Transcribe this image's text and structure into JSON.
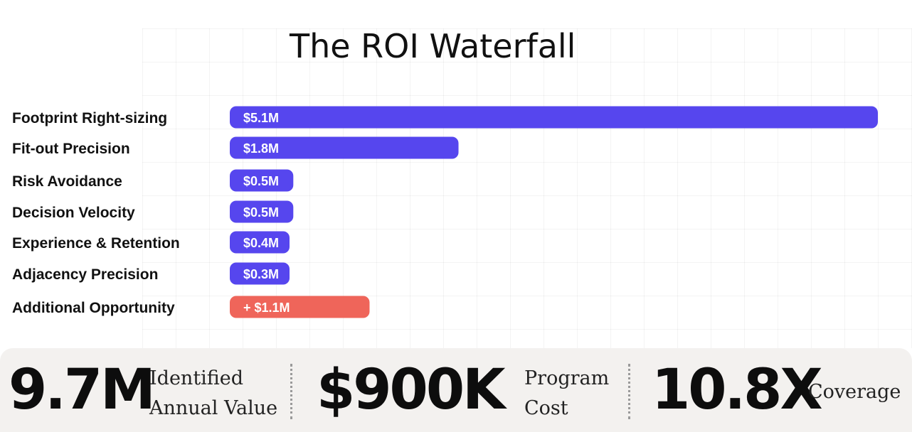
{
  "chart_data": {
    "type": "bar",
    "orientation": "horizontal",
    "title": "The ROI Waterfall",
    "categories": [
      "Footprint Right-sizing",
      "Fit-out Precision",
      "Risk Avoidance",
      "Decision Velocity",
      "Experience & Retention",
      "Adjacency Precision",
      "Additional Opportunity"
    ],
    "values": [
      5.1,
      1.8,
      0.5,
      0.5,
      0.4,
      0.3,
      1.1
    ],
    "data_labels": [
      "$5.1M",
      "$1.8M",
      "$0.5M",
      "$0.5M",
      "$0.4M",
      "$0.3M",
      "+ $1.1M"
    ],
    "colors": [
      "#5646ee",
      "#5646ee",
      "#5646ee",
      "#5646ee",
      "#5646ee",
      "#5646ee",
      "#ef655a"
    ],
    "unit": "$M",
    "xlim": [
      0,
      5.1
    ],
    "grid": true
  },
  "stats": [
    {
      "value": "9.7M",
      "label_line1": "Identified",
      "label_line2": "Annual Value"
    },
    {
      "value": "$900K",
      "label_line1": "Program",
      "label_line2": "Cost"
    },
    {
      "value": "10.8X",
      "label_line1": "Coverage",
      "label_line2": ""
    }
  ]
}
